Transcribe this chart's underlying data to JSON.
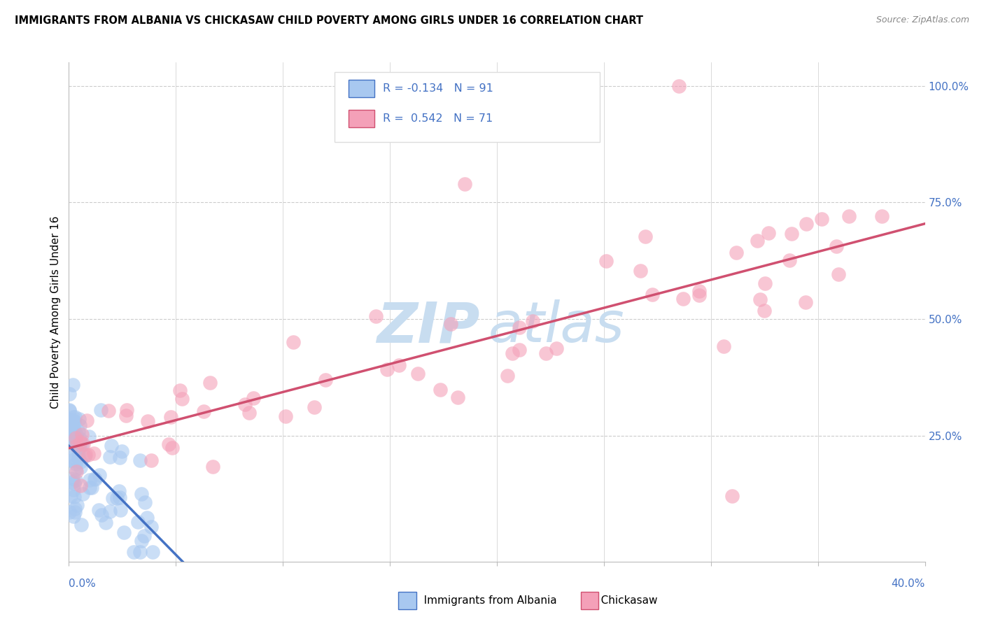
{
  "title": "IMMIGRANTS FROM ALBANIA VS CHICKASAW CHILD POVERTY AMONG GIRLS UNDER 16 CORRELATION CHART",
  "source": "Source: ZipAtlas.com",
  "ylabel": "Child Poverty Among Girls Under 16",
  "xlim": [
    0.0,
    0.4
  ],
  "ylim": [
    -0.02,
    1.05
  ],
  "legend_r1": "-0.134",
  "legend_n1": "91",
  "legend_r2": "0.542",
  "legend_n2": "71",
  "color_albania": "#a8c8f0",
  "color_albania_dark": "#4472c4",
  "color_chickasaw": "#f4a0b8",
  "color_chickasaw_dark": "#d05070",
  "grid_color": "#cccccc",
  "right_axis_color": "#4472c4",
  "watermark_color": "#c8ddf0"
}
